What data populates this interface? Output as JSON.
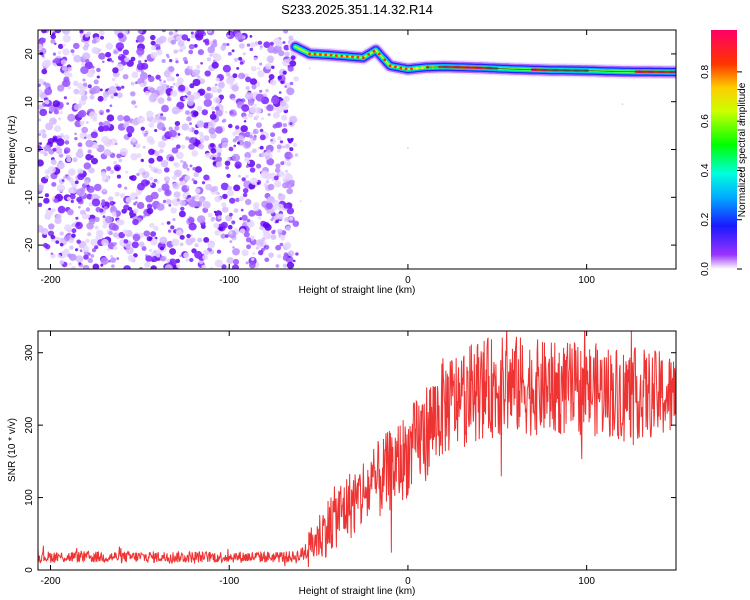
{
  "title": "S233.2025.351.14.32.R14",
  "chart_data": [
    {
      "type": "heatmap",
      "name": "spectrogram",
      "xlabel": "Height of straight line (km)",
      "ylabel": "Frequency (Hz)",
      "xlim": [
        -207,
        150
      ],
      "ylim": [
        -25,
        25
      ],
      "xticks": [
        -200,
        -100,
        0,
        100
      ],
      "xtick_labels": [
        "-200",
        "-100",
        "0",
        "100"
      ],
      "yticks": [
        20,
        10,
        0,
        -10,
        -20
      ],
      "ytick_labels": [
        "20",
        "10",
        "0",
        "-10",
        "-20"
      ],
      "noise_region_x": [
        -207,
        -62
      ],
      "signal_ridge": {
        "x": [
          -63,
          -55,
          -45,
          -35,
          -25,
          -18,
          -10,
          0,
          10,
          20,
          40,
          60,
          80,
          100,
          120,
          150
        ],
        "freq_hz": [
          21.5,
          20.0,
          19.8,
          19.5,
          19.2,
          20.8,
          17.5,
          16.8,
          17.2,
          17.3,
          17.1,
          16.8,
          16.6,
          16.5,
          16.3,
          16.2
        ]
      },
      "colorbar": {
        "label": "Normalized spectral amplitude",
        "range": [
          0,
          0.97
        ],
        "ticks": [
          0.0,
          0.2,
          0.4,
          0.6,
          0.8
        ],
        "tick_labels": [
          "0.0",
          "0.2",
          "0.4",
          "0.6",
          "0.8"
        ]
      }
    },
    {
      "type": "line",
      "name": "snr",
      "xlabel": "Height of straight line (km)",
      "ylabel": "SNR (10 * v/v)",
      "xlim": [
        -207,
        150
      ],
      "ylim": [
        0,
        330
      ],
      "xticks": [
        -200,
        -100,
        0,
        100
      ],
      "xtick_labels": [
        "-200",
        "-100",
        "0",
        "100"
      ],
      "yticks": [
        0,
        100,
        200,
        300
      ],
      "ytick_labels": [
        "0",
        "100",
        "200",
        "300"
      ],
      "series": [
        {
          "name": "SNR",
          "color": "#ee3333",
          "trend_x": [
            -207,
            -65,
            -60,
            -50,
            -40,
            -20,
            0,
            20,
            40,
            60,
            80,
            100,
            120,
            150
          ],
          "trend_y": [
            18,
            18,
            20,
            45,
            75,
            115,
            160,
            225,
            250,
            255,
            250,
            250,
            245,
            240
          ],
          "noise_amplitude": [
            8,
            8,
            10,
            35,
            45,
            55,
            60,
            70,
            70,
            70,
            65,
            65,
            65,
            60
          ]
        }
      ]
    }
  ]
}
